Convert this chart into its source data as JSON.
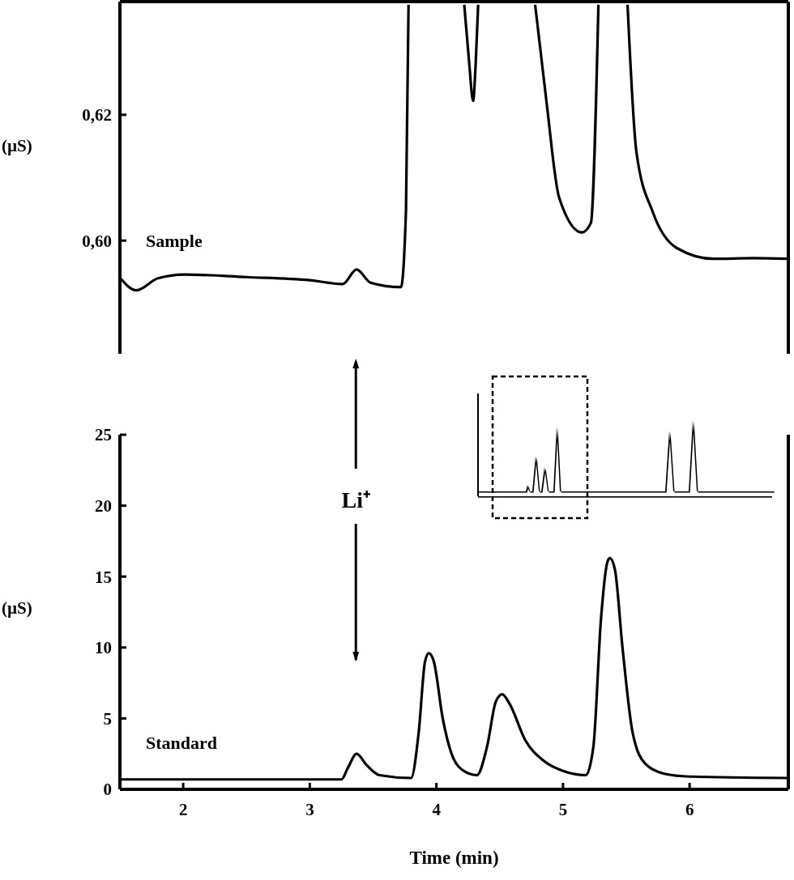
{
  "chart_data": [
    {
      "type": "line",
      "ylabel": "(µS)",
      "xlim": [
        1.5,
        6.78
      ],
      "ylim": [
        0.582,
        0.638
      ],
      "yticks": [
        {
          "value": 0.6,
          "label": "0,60"
        },
        {
          "value": 0.62,
          "label": "0,62"
        }
      ],
      "tick_labels": "y",
      "legend": false,
      "grid": false,
      "x": [
        1.5,
        1.63,
        1.8,
        2.01,
        2.5,
        3.0,
        3.26,
        3.37,
        3.48,
        3.72,
        3.76,
        3.78,
        3.9,
        4.22,
        4.26,
        4.29,
        4.31,
        4.33,
        4.5,
        4.78,
        4.87,
        4.97,
        5.15,
        5.22,
        5.28,
        5.4,
        5.51,
        5.58,
        5.71,
        5.9,
        6.19,
        6.5,
        6.78
      ],
      "series": [
        {
          "name": "Sample",
          "color": "#000000",
          "values": [
            0.5941,
            0.5921,
            0.594,
            0.5946,
            0.5942,
            0.5937,
            0.5931,
            0.5954,
            0.5933,
            0.5926,
            0.605,
            0.6375,
            null,
            0.6375,
            0.628,
            0.6222,
            0.628,
            0.6375,
            null,
            0.6375,
            0.622,
            0.6068,
            0.6013,
            0.6028,
            0.6375,
            null,
            0.6375,
            0.6141,
            0.6045,
            0.5988,
            0.5971,
            0.5972,
            0.5971
          ]
        }
      ]
    },
    {
      "type": "line",
      "xlabel": "Time (min)",
      "ylabel": "(µS)",
      "xlim": [
        1.5,
        6.78
      ],
      "ylim": [
        0,
        25
      ],
      "xticks": [
        2,
        3,
        4,
        5,
        6
      ],
      "yticks": [
        0,
        5,
        10,
        15,
        20,
        25
      ],
      "legend": false,
      "grid": false,
      "annotations": [
        "Li⁺"
      ],
      "x": [
        1.5,
        3.25,
        3.3,
        3.37,
        3.45,
        3.55,
        3.8,
        3.86,
        3.91,
        3.94,
        3.98,
        4.05,
        4.12,
        4.2,
        4.32,
        4.4,
        4.47,
        4.52,
        4.58,
        4.7,
        4.85,
        5.0,
        5.18,
        5.24,
        5.3,
        5.35,
        5.37,
        5.41,
        5.47,
        5.55,
        5.65,
        5.8,
        6.0,
        6.78
      ],
      "series": [
        {
          "name": "Standard",
          "color": "#000000",
          "values": [
            0.7,
            0.7,
            1.5,
            2.5,
            1.7,
            1.0,
            0.8,
            4,
            9,
            9.6,
            9,
            5,
            2.5,
            1.4,
            1.0,
            3,
            6.2,
            6.7,
            6,
            3.5,
            2.0,
            1.3,
            1.0,
            3,
            12,
            16,
            16.3,
            15.5,
            10,
            4,
            1.8,
            1.1,
            0.9,
            0.8
          ]
        }
      ]
    }
  ]
}
